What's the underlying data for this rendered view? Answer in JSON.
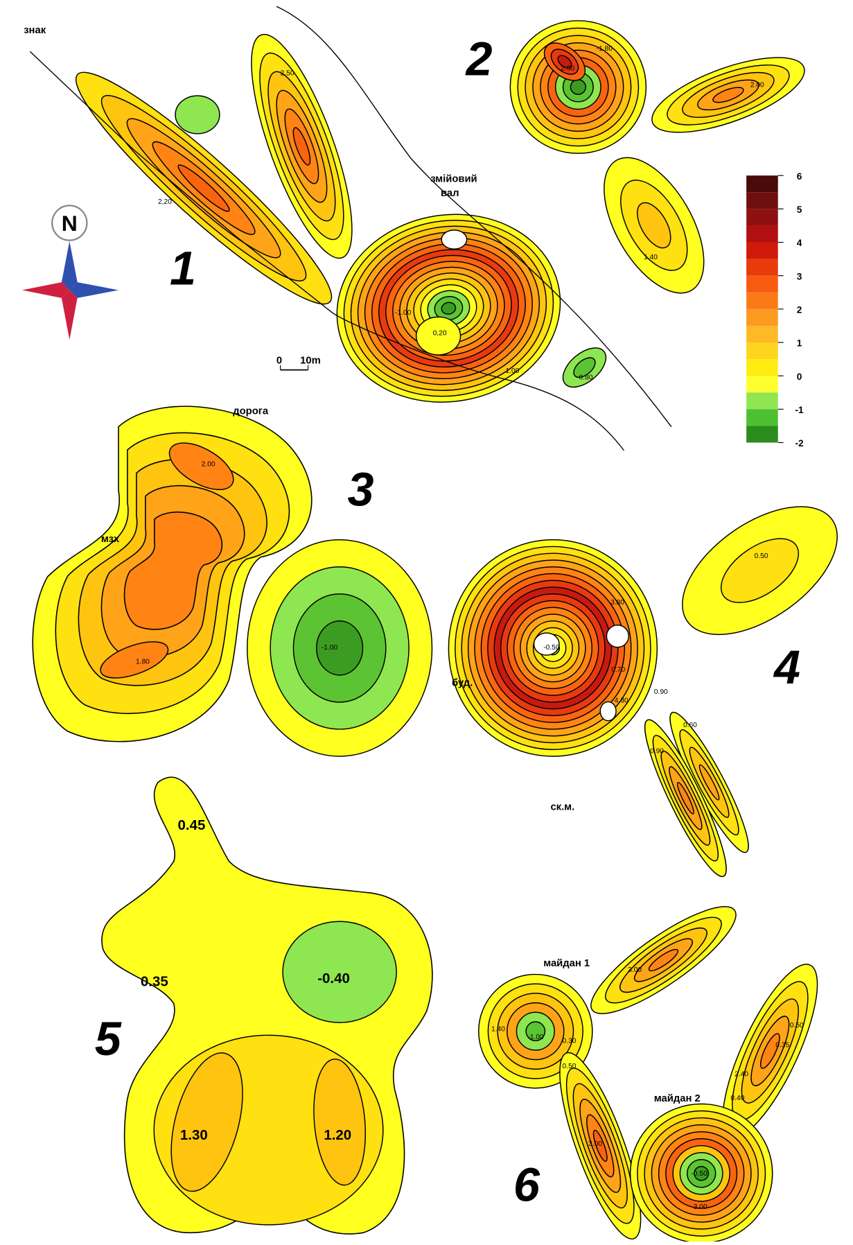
{
  "header": {
    "marker": "знак",
    "compass": "N",
    "scale_start": "0",
    "scale_end": "10m"
  },
  "sites": [
    {
      "number": "1",
      "labels": [
        "2,20",
        "2.50",
        "-1.00",
        "0,20",
        "1.00",
        "-0.80"
      ],
      "notes": [
        "змійовий",
        "вал"
      ]
    },
    {
      "number": "2",
      "labels": [
        "2.50",
        "-1.80",
        "2.00",
        "1.40"
      ]
    },
    {
      "number": "3",
      "labels": [
        "2.00",
        "1.80",
        "-1.00"
      ],
      "notes": [
        "дорога",
        "мзх"
      ]
    },
    {
      "number": "4",
      "labels": [
        "0.50",
        "-0.50",
        "3.80",
        "0.70",
        "4.30",
        "0.90",
        "0.60",
        "0.90"
      ],
      "notes": [
        "буд.",
        "ск.м."
      ]
    },
    {
      "number": "5",
      "labels": [
        "0.45",
        "0.35",
        "-0.40",
        "1.30",
        "1.20"
      ]
    },
    {
      "number": "6",
      "labels": [
        "1.40",
        "-1.00",
        "0.30",
        "0.50",
        "3.00",
        "0.50",
        "0.35",
        "2.40",
        "0.40",
        "3.00",
        "-0.50",
        "3.00"
      ],
      "notes": [
        "майдан 1",
        "майдан 2"
      ]
    }
  ],
  "legend": {
    "ticks": [
      6,
      5,
      4,
      3,
      2,
      1,
      0,
      -1,
      -2
    ],
    "colors": [
      "#4a0a0a",
      "#6e0e0e",
      "#8e1010",
      "#b01010",
      "#d01a0a",
      "#e83a0a",
      "#f85a10",
      "#fb7a18",
      "#fd9a20",
      "#feb828",
      "#ffd41e",
      "#ffec10",
      "#ffff30",
      "#90e650",
      "#4cc030",
      "#2a8c1c"
    ]
  }
}
